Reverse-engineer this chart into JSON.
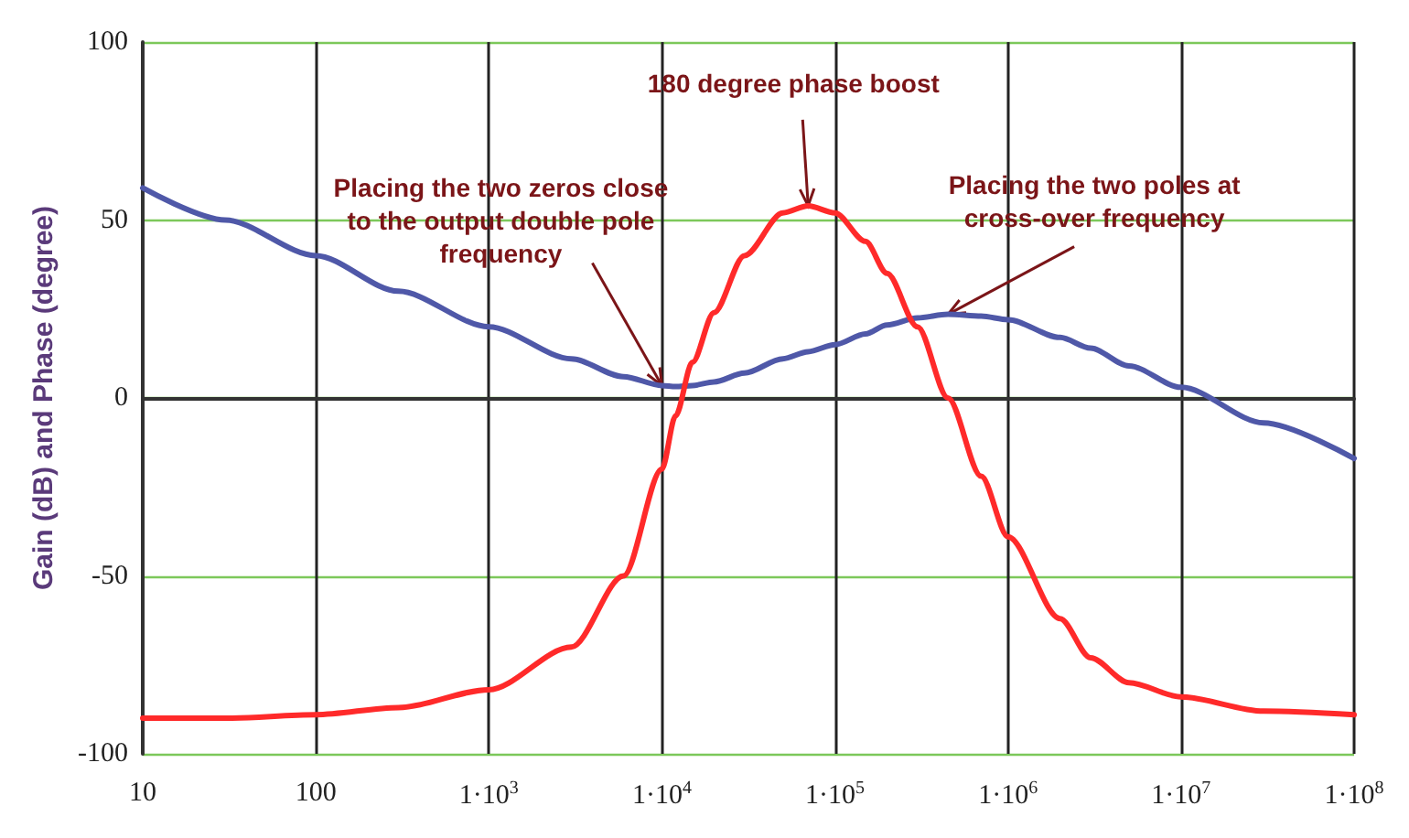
{
  "chart_data": {
    "type": "line",
    "ylabel": "Gain (dB) and Phase (degree)",
    "log": "x",
    "xlim": [
      10,
      100000000
    ],
    "xticks": [
      10,
      100,
      {
        "value": 1000,
        "label": "1·10$^{3}$"
      },
      {
        "value": 10000,
        "label": "1·10$^{4}$"
      },
      {
        "value": 100000,
        "label": "1·10$^{5}$"
      },
      {
        "value": 1000000,
        "label": "1·10$^{6}$"
      },
      {
        "value": 10000000,
        "label": "1·10$^{7}$"
      },
      {
        "value": 100000000,
        "label": "1·10$^{8}$"
      }
    ],
    "ylim": [
      -100,
      100
    ],
    "yticks": [
      -100,
      -50,
      0,
      50,
      100
    ],
    "grid": true,
    "marker": "none",
    "line_style": "solid",
    "x": [
      10,
      30,
      100,
      300,
      1000,
      3000,
      6000,
      10000,
      12000,
      15000,
      20000,
      30000,
      50000,
      70000,
      100000,
      150000,
      200000,
      300000,
      450000,
      700000,
      1000000,
      2000000,
      3000000,
      5000000,
      10000000,
      30000000,
      100000000
    ],
    "series": [
      {
        "color": "#4f58a8",
        "values": [
          59,
          50,
          40,
          30,
          20,
          11,
          6,
          3.5,
          3.2,
          3.5,
          4.5,
          7,
          11,
          13,
          15,
          18,
          20.5,
          22.5,
          23.5,
          23,
          22,
          17,
          14,
          9,
          3,
          -7,
          -17
        ]
      },
      {
        "color": "#ff2a2a",
        "values": [
          -90,
          -90,
          -89,
          -87,
          -82,
          -70,
          -50,
          -20,
          -5,
          10,
          24,
          40,
          52,
          54,
          52,
          44,
          35,
          20,
          0,
          -22,
          -39,
          -62,
          -73,
          -80,
          -84,
          -88,
          -89
        ]
      }
    ],
    "annotations": [
      {
        "text": "Placing the two zeros close\nto the output double pole\nfrequency",
        "x": 10000,
        "y": 3.5
      },
      {
        "text": "180 degree phase boost",
        "x": 70000,
        "y": 54
      },
      {
        "text": "Placing the two poles at\ncross-over frequency",
        "x": 450000,
        "y": 23.5
      }
    ]
  }
}
